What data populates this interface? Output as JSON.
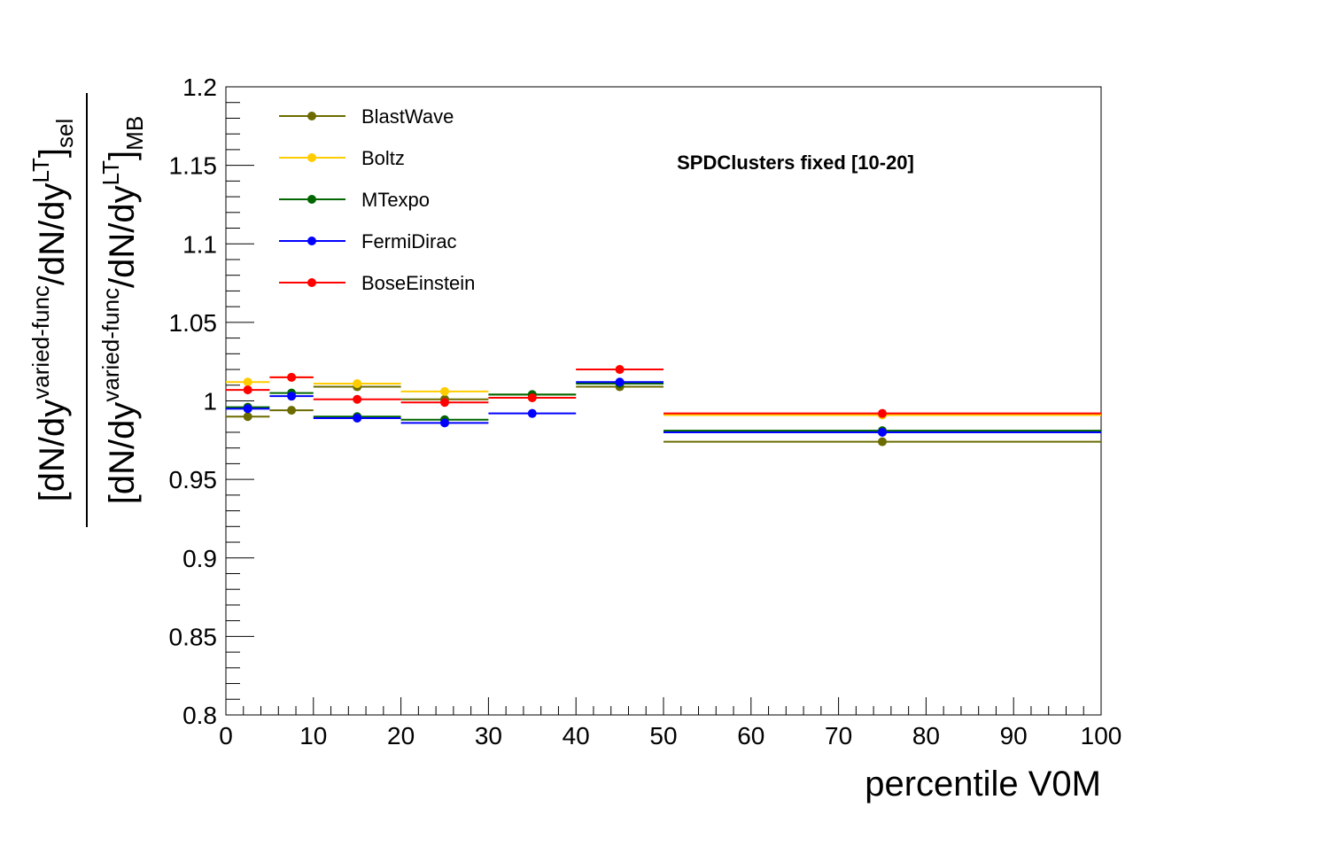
{
  "chart_data": {
    "type": "scatter",
    "annotation": "SPDClusters fixed [10-20]",
    "xlabel": "percentile V0M",
    "ylabel": {
      "num_main": "[dN/dy",
      "num_sup1": "varied-func",
      "num_mid": "/dN/dy",
      "num_sup2": "LT",
      "num_close": "]",
      "num_sub": "sel",
      "den_main": "[dN/dy",
      "den_sup1": "varied-func",
      "den_mid": "/dN/dy",
      "den_sup2": "LT",
      "den_close": "]",
      "den_sub": "MB"
    },
    "xlim": [
      0,
      100
    ],
    "ylim": [
      0.8,
      1.2
    ],
    "x_ticks": [
      "0",
      "10",
      "20",
      "30",
      "40",
      "50",
      "60",
      "70",
      "80",
      "90",
      "100"
    ],
    "y_ticks": [
      "0.8",
      "0.85",
      "0.9",
      "0.95",
      "1",
      "1.05",
      "1.1",
      "1.15",
      "1.2"
    ],
    "grid": false,
    "legend_position": "top-left",
    "bins": [
      [
        0,
        5
      ],
      [
        5,
        10
      ],
      [
        10,
        20
      ],
      [
        20,
        30
      ],
      [
        30,
        40
      ],
      [
        40,
        50
      ],
      [
        50,
        100
      ]
    ],
    "series": [
      {
        "name": "BlastWave",
        "color": "#6b6b00",
        "values": [
          0.99,
          0.994,
          1.009,
          1.001,
          1.004,
          1.009,
          0.974
        ]
      },
      {
        "name": "Boltz",
        "color": "#ffcc00",
        "values": [
          1.012,
          1.015,
          1.011,
          1.006,
          1.002,
          1.02,
          0.991
        ]
      },
      {
        "name": "MTexpo",
        "color": "#006600",
        "values": [
          0.996,
          1.005,
          0.99,
          0.988,
          1.004,
          1.011,
          0.981
        ]
      },
      {
        "name": "FermiDirac",
        "color": "#0000ff",
        "values": [
          0.995,
          1.003,
          0.989,
          0.986,
          0.992,
          1.012,
          0.98
        ]
      },
      {
        "name": "BoseEinstein",
        "color": "#ff0000",
        "values": [
          1.007,
          1.015,
          1.001,
          0.999,
          1.002,
          1.02,
          0.992
        ]
      }
    ]
  }
}
